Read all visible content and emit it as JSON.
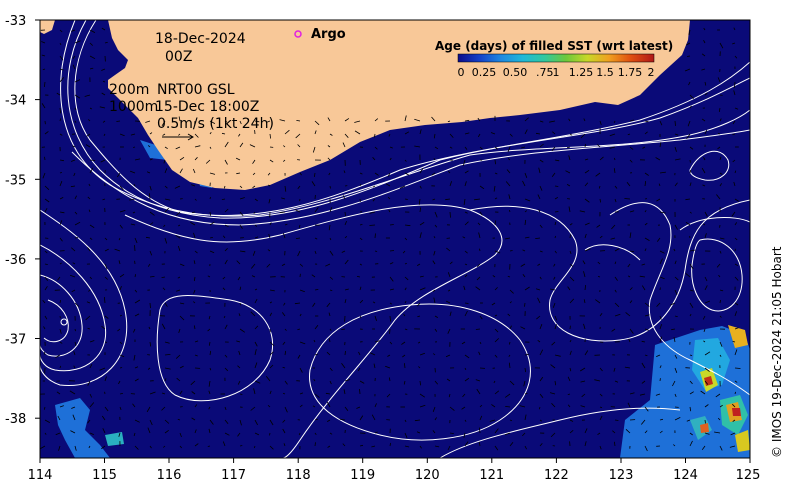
{
  "header": {
    "date": "18-Dec-2024",
    "time": "00Z",
    "argo_label": "Argo"
  },
  "map_notes": {
    "depth_a": "200m",
    "depth_b": "1000m",
    "product": "NRT00 GSL",
    "product_time": "15-Dec 18:00Z",
    "velocity_scale": "0.5m/s (1kt 24h)"
  },
  "colorbar": {
    "title": "Age (days) of filled SST (wrt latest)",
    "tick_labels": [
      "0",
      "0.25",
      "0.50",
      ".75",
      "1",
      "1.25",
      "1.5",
      "1.75",
      "2"
    ],
    "colors": [
      "#0c0c8a",
      "#1440c8",
      "#1e88e0",
      "#20b8d8",
      "#30c8a0",
      "#6cc83c",
      "#c8d828",
      "#f0a020",
      "#e05010",
      "#b01818"
    ]
  },
  "axes": {
    "x_ticks": [
      "114",
      "115",
      "116",
      "117",
      "118",
      "119",
      "120",
      "121",
      "122",
      "123",
      "124",
      "125"
    ],
    "y_ticks": [
      "-33",
      "-34",
      "-35",
      "-36",
      "-37",
      "-38"
    ],
    "x_range": [
      114,
      125
    ],
    "y_range": [
      -38.5,
      -33
    ]
  },
  "credit": "© IMOS 19-Dec-2024 21:05 Hobart",
  "colors": {
    "ocean": "#0a0a78",
    "land": "#f8c898",
    "contour": "#ffffff",
    "argo": "#e020e0"
  }
}
